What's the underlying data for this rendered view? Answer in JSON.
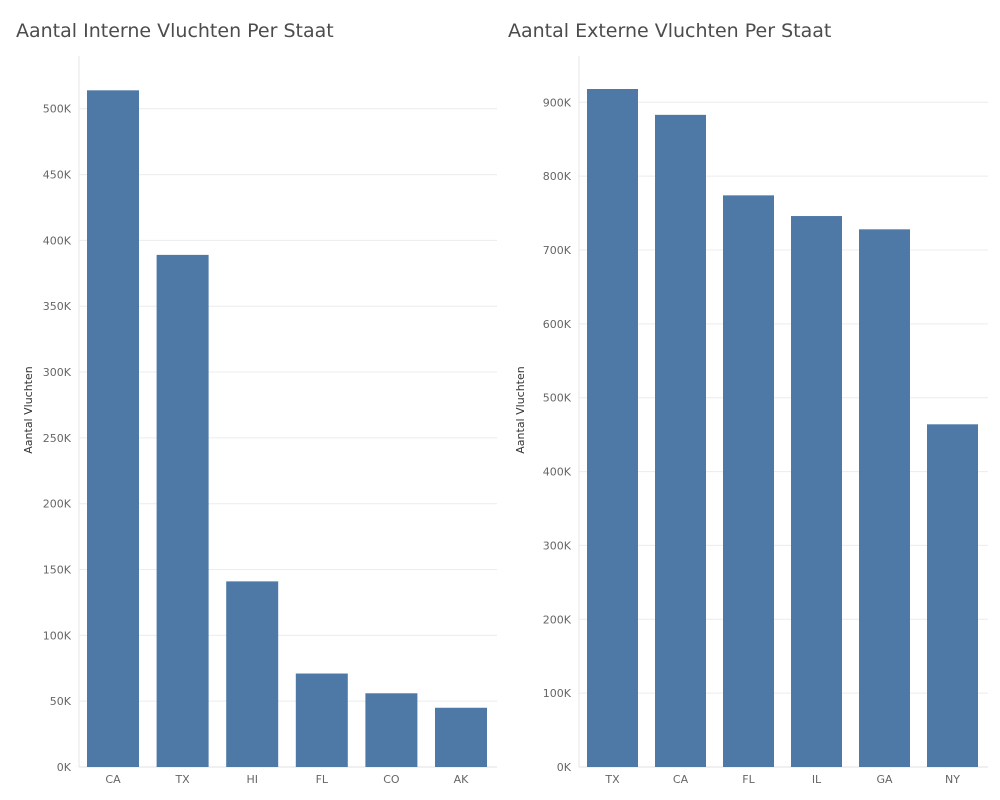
{
  "chart_data": [
    {
      "type": "bar",
      "title": "Aantal Interne Vluchten Per Staat",
      "xlabel": "",
      "ylabel": "Aantal Vluchten",
      "categories": [
        "CA",
        "TX",
        "HI",
        "FL",
        "CO",
        "AK"
      ],
      "values": [
        514000,
        389000,
        141000,
        71000,
        56000,
        45000
      ],
      "ylim": [
        0,
        515000
      ],
      "yticks": [
        0,
        50000,
        100000,
        150000,
        200000,
        250000,
        300000,
        350000,
        400000,
        450000,
        500000
      ],
      "ytick_labels": [
        "0K",
        "50K",
        "100K",
        "150K",
        "200K",
        "250K",
        "300K",
        "350K",
        "400K",
        "450K",
        "500K"
      ],
      "color": "#4e79a7",
      "grid": true
    },
    {
      "type": "bar",
      "title": "Aantal Externe Vluchten Per Staat",
      "xlabel": "",
      "ylabel": "Aantal Vluchten",
      "categories": [
        "TX",
        "CA",
        "FL",
        "IL",
        "GA",
        "NY"
      ],
      "values": [
        918000,
        883000,
        774000,
        746000,
        728000,
        464000
      ],
      "ylim": [
        0,
        918000
      ],
      "yticks": [
        0,
        100000,
        200000,
        300000,
        400000,
        500000,
        600000,
        700000,
        800000,
        900000
      ],
      "ytick_labels": [
        "0K",
        "100K",
        "200K",
        "300K",
        "400K",
        "500K",
        "600K",
        "700K",
        "800K",
        "900K"
      ],
      "color": "#4e79a7",
      "grid": true
    }
  ]
}
